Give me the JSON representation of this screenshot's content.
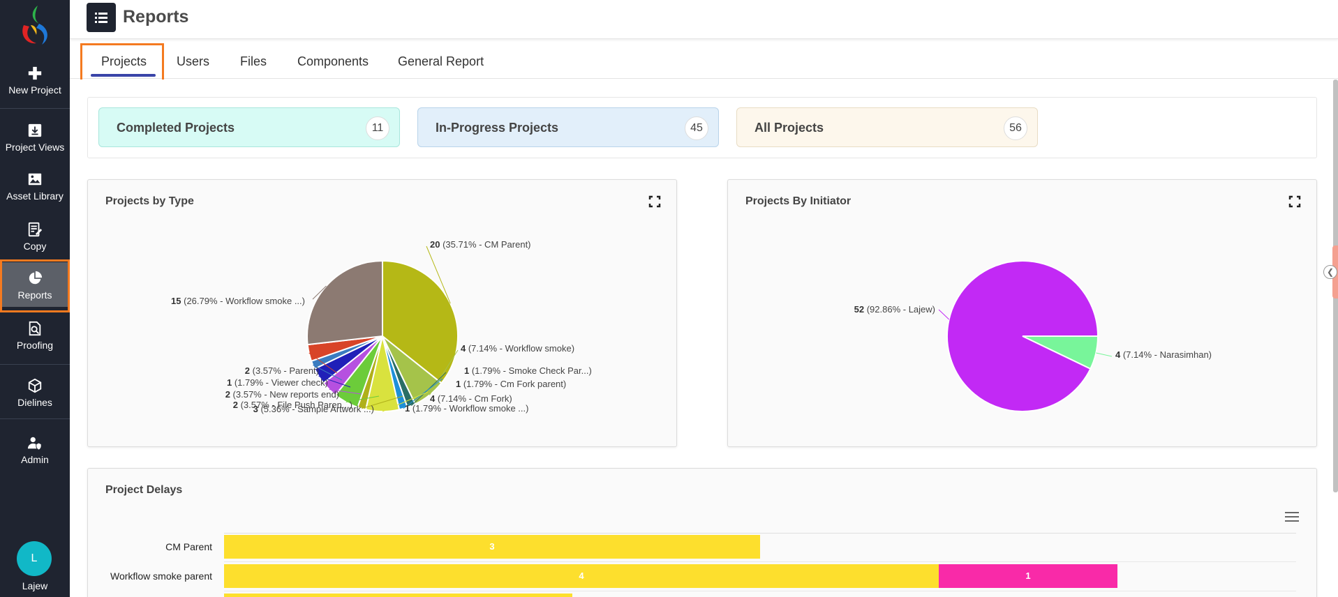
{
  "sidebar": {
    "items": [
      {
        "label": "New Project",
        "icon": "plus-icon"
      },
      {
        "label": "Project Views",
        "icon": "download-box-icon"
      },
      {
        "label": "Asset Library",
        "icon": "image-icon"
      },
      {
        "label": "Copy",
        "icon": "edit-note-icon"
      },
      {
        "label": "Reports",
        "icon": "pie-chart-icon"
      },
      {
        "label": "Proofing",
        "icon": "document-search-icon"
      },
      {
        "label": "Dielines",
        "icon": "cube-icon"
      },
      {
        "label": "Admin",
        "icon": "user-shield-icon"
      }
    ],
    "active": "Reports",
    "user_initial": "L",
    "user_name": "Lajew"
  },
  "header": {
    "title": "Reports"
  },
  "tabs": [
    {
      "label": "Projects",
      "active": true
    },
    {
      "label": "Users"
    },
    {
      "label": "Files"
    },
    {
      "label": "Components"
    },
    {
      "label": "General Report"
    }
  ],
  "summary": {
    "completed": {
      "label": "Completed Projects",
      "count": "11",
      "color": "#d7fbf5"
    },
    "in_progress": {
      "label": "In-Progress Projects",
      "count": "45",
      "color": "#e2effa"
    },
    "all": {
      "label": "All Projects",
      "count": "56",
      "color": "#fdf7ec"
    }
  },
  "colors": {
    "accent": "#f47a20",
    "sidebar_bg": "#1f2430",
    "tab_underline": "#3a44a8"
  },
  "chart_data": [
    {
      "type": "pie",
      "title": "Projects by Type",
      "slices": [
        {
          "value": 20,
          "label": "20",
          "text": "(35.71% - CM Parent)",
          "color": "#b5b816"
        },
        {
          "value": 4,
          "label": "4",
          "text": "(7.14% - Workflow smoke)",
          "color": "#a5c34a"
        },
        {
          "value": 1,
          "label": "1",
          "text": "(1.79% - Smoke Check Par...)",
          "color": "#2a6e66"
        },
        {
          "value": 1,
          "label": "1",
          "text": "(1.79% - Cm Fork parent)",
          "color": "#1e90d8"
        },
        {
          "value": 4,
          "label": "4",
          "text": "(7.14% - Cm Fork)",
          "color": "#d9e23e"
        },
        {
          "value": 1,
          "label": "1",
          "text": "(1.79% - Workflow smoke ...)",
          "color": "#b0b01a"
        },
        {
          "value": 3,
          "label": "3",
          "text": "(5.36% - Sample Artwork ...)",
          "color": "#6ccc3a"
        },
        {
          "value": 2,
          "label": "2",
          "text": "(3.57% - File Push Paren...)",
          "color": "#b650e0"
        },
        {
          "value": 2,
          "label": "2",
          "text": "(3.57% - New reports end)",
          "color": "#2020b8"
        },
        {
          "value": 1,
          "label": "1",
          "text": "(1.79% - Viewer check)",
          "color": "#3a7cc0"
        },
        {
          "value": 2,
          "label": "2",
          "text": "(3.57% - Parent)",
          "color": "#d84428"
        },
        {
          "value": 15,
          "label": "15",
          "text": "(26.79% - Workflow smoke ...)",
          "color": "#8c7a72"
        }
      ]
    },
    {
      "type": "pie",
      "title": "Projects By Initiator",
      "slices": [
        {
          "value": 4,
          "label": "4",
          "text": "(7.14% - Narasimhan)",
          "color": "#78f59a"
        },
        {
          "value": 52,
          "label": "52",
          "text": "(92.86% - Lajew)",
          "color": "#c229f5"
        }
      ]
    },
    {
      "type": "bar",
      "orientation": "horizontal",
      "stacked": true,
      "title": "Project Delays",
      "categories": [
        "CM Parent",
        "Workflow smoke parent"
      ],
      "series": [
        {
          "values": [
            3,
            4
          ],
          "color": "#fddf2d"
        },
        {
          "values": [
            0,
            1
          ],
          "color": "#f92aa8"
        }
      ],
      "xlim": [
        0,
        6
      ]
    }
  ]
}
